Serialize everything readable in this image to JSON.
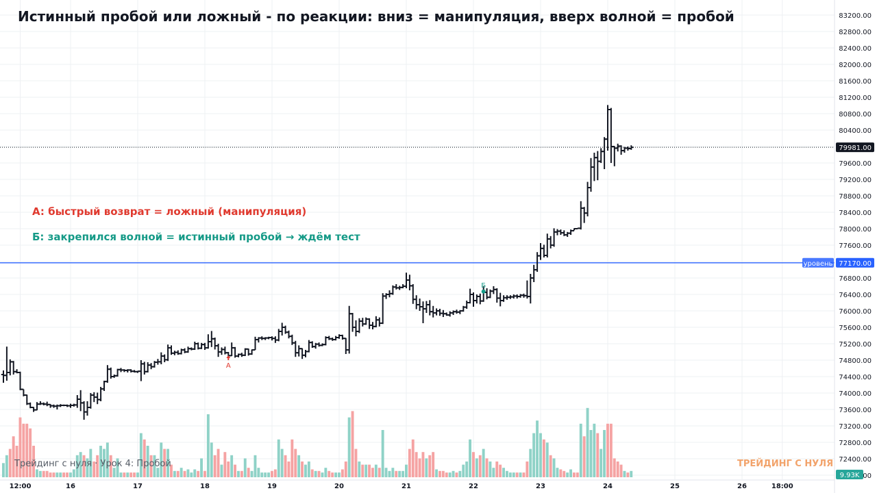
{
  "title": "Истинный пробой или ложный - по реакции: вниз = манипуляция, вверх волной = пробой",
  "notes": {
    "a": "A: быстрый возврат = ложный (манипуляция)",
    "b": "Б: закрепился волной = истинный пробой → ждём тест"
  },
  "watermark_left": "Трейдинг с нуля · Урок 4: Пробой",
  "watermark_right": "ТРЕЙДИНГ С НУЛЯ",
  "chart_data": {
    "type": "ohlc",
    "price_ticks": [
      "83200.00",
      "82800.00",
      "82400.00",
      "82000.00",
      "81600.00",
      "81200.00",
      "80800.00",
      "80400.00",
      "80000.00",
      "79600.00",
      "79200.00",
      "78800.00",
      "78400.00",
      "78000.00",
      "77600.00",
      "77200.00",
      "76800.00",
      "76400.00",
      "76000.00",
      "75600.00",
      "75200.00",
      "74800.00",
      "74400.00",
      "74000.00",
      "73600.00",
      "73200.00",
      "72800.00",
      "72400.00",
      "72000.00"
    ],
    "time_ticks": [
      {
        "label": "12:00",
        "bar": 5
      },
      {
        "label": "16",
        "bar": 20
      },
      {
        "label": "17",
        "bar": 40
      },
      {
        "label": "18",
        "bar": 60
      },
      {
        "label": "19",
        "bar": 80
      },
      {
        "label": "20",
        "bar": 100
      },
      {
        "label": "21",
        "bar": 120
      },
      {
        "label": "22",
        "bar": 140
      },
      {
        "label": "23",
        "bar": 160
      },
      {
        "label": "24",
        "bar": 180
      },
      {
        "label": "25",
        "bar": 200
      },
      {
        "label": "26",
        "bar": 220
      },
      {
        "label": "18:00",
        "bar": 232
      }
    ],
    "ylim": [
      72000,
      83400
    ],
    "last_price": 79981,
    "last_price_label": "79981.00",
    "level": {
      "name": "уровень",
      "value": 77170,
      "label": "77170.00",
      "color": "#2962ff"
    },
    "volume_label": "9.93K",
    "markers": [
      {
        "label": "A",
        "bar": 67,
        "price": 74850,
        "color": "#e03a2f"
      },
      {
        "label": "Б",
        "bar": 143,
        "price": 76470,
        "color": "#159a87"
      }
    ],
    "colors": {
      "bar": "#131722",
      "vol_up": "#8fd2c7",
      "vol_down": "#f5a3a3",
      "grid": "#eef0f3",
      "last_price_bg": "#131722",
      "vol_label_bg": "#26a69a"
    },
    "bars": [
      [
        74450,
        74550,
        74250,
        74430,
        9
      ],
      [
        74430,
        75130,
        74300,
        74500,
        14
      ],
      [
        74500,
        74820,
        74430,
        74760,
        -18
      ],
      [
        74760,
        74780,
        74450,
        74520,
        -26
      ],
      [
        74520,
        74580,
        74480,
        74500,
        -20
      ],
      [
        74500,
        74520,
        74070,
        74090,
        -38
      ],
      [
        74090,
        74090,
        73920,
        73950,
        -34
      ],
      [
        73950,
        73960,
        73710,
        73740,
        -34
      ],
      [
        73740,
        73770,
        73630,
        73650,
        -31
      ],
      [
        73650,
        73660,
        73540,
        73590,
        -20
      ],
      [
        73590,
        73780,
        73580,
        73730,
        5
      ],
      [
        73730,
        73800,
        73710,
        73740,
        4
      ],
      [
        73740,
        73770,
        73700,
        73730,
        -4
      ],
      [
        73730,
        73790,
        73680,
        73720,
        -4
      ],
      [
        73720,
        73730,
        73640,
        73690,
        -3
      ],
      [
        73690,
        73720,
        73640,
        73680,
        -3
      ],
      [
        73680,
        73720,
        73600,
        73690,
        3
      ],
      [
        73690,
        73730,
        73660,
        73700,
        3
      ],
      [
        73700,
        73720,
        73680,
        73700,
        -3
      ],
      [
        73700,
        73720,
        73660,
        73690,
        -3
      ],
      [
        73690,
        73740,
        73640,
        73700,
        3
      ],
      [
        73700,
        73740,
        73670,
        73710,
        5
      ],
      [
        73710,
        73950,
        73640,
        73850,
        14
      ],
      [
        73850,
        74070,
        73560,
        73760,
        16
      ],
      [
        73760,
        73800,
        73350,
        73540,
        -14
      ],
      [
        73540,
        73800,
        73450,
        73650,
        12
      ],
      [
        73650,
        74000,
        73620,
        73950,
        18
      ],
      [
        73950,
        74020,
        73780,
        73900,
        -10
      ],
      [
        73900,
        74010,
        73730,
        73840,
        -14
      ],
      [
        73840,
        74150,
        73800,
        74100,
        20
      ],
      [
        74100,
        74300,
        74050,
        74280,
        18
      ],
      [
        74280,
        74680,
        74250,
        74580,
        22
      ],
      [
        74580,
        74620,
        74350,
        74400,
        -14
      ],
      [
        74400,
        74450,
        74370,
        74420,
        6
      ],
      [
        74420,
        74590,
        74400,
        74570,
        12
      ],
      [
        74570,
        74610,
        74510,
        74560,
        3
      ],
      [
        74560,
        74580,
        74510,
        74550,
        -3
      ],
      [
        74550,
        74580,
        74500,
        74560,
        3
      ],
      [
        74560,
        74580,
        74500,
        74530,
        -3
      ],
      [
        74530,
        74560,
        74500,
        74520,
        -3
      ],
      [
        74520,
        74540,
        74490,
        74530,
        3
      ],
      [
        74530,
        74800,
        74290,
        74710,
        28
      ],
      [
        74710,
        74760,
        74450,
        74520,
        -24
      ],
      [
        74520,
        74750,
        74500,
        74680,
        20
      ],
      [
        74680,
        74730,
        74580,
        74640,
        -14
      ],
      [
        74640,
        74780,
        74620,
        74750,
        14
      ],
      [
        74750,
        74830,
        74690,
        74760,
        6
      ],
      [
        74760,
        74990,
        74700,
        74900,
        22
      ],
      [
        74900,
        74940,
        74750,
        74810,
        -18
      ],
      [
        74810,
        75180,
        74780,
        75100,
        18
      ],
      [
        75100,
        75160,
        74930,
        74970,
        -8
      ],
      [
        74970,
        75030,
        74920,
        74990,
        4
      ],
      [
        74990,
        75040,
        74930,
        74960,
        -4
      ],
      [
        74960,
        75080,
        74940,
        75050,
        6
      ],
      [
        75050,
        75090,
        74970,
        75000,
        -4
      ],
      [
        75000,
        75130,
        74980,
        75080,
        5
      ],
      [
        75080,
        75110,
        75040,
        75070,
        3
      ],
      [
        75070,
        75250,
        75050,
        75200,
        5
      ],
      [
        75200,
        75230,
        75060,
        75090,
        -4
      ],
      [
        75090,
        75220,
        75070,
        75180,
        12
      ],
      [
        75180,
        75220,
        75050,
        75100,
        -4
      ],
      [
        75100,
        75430,
        75080,
        75250,
        40
      ],
      [
        75250,
        75510,
        75120,
        75320,
        22
      ],
      [
        75320,
        75350,
        75060,
        75150,
        -14
      ],
      [
        75150,
        75200,
        74880,
        75000,
        -18
      ],
      [
        75000,
        75110,
        74930,
        75060,
        8
      ],
      [
        75060,
        75130,
        74940,
        74980,
        -16
      ],
      [
        74980,
        75000,
        74850,
        74910,
        -10
      ],
      [
        74910,
        75230,
        74900,
        75100,
        14
      ],
      [
        75100,
        75120,
        74860,
        74900,
        -8
      ],
      [
        74900,
        74960,
        74870,
        74940,
        4
      ],
      [
        74940,
        74980,
        74880,
        74920,
        -4
      ],
      [
        74920,
        75090,
        74900,
        75070,
        12
      ],
      [
        75070,
        75080,
        74910,
        74950,
        -6
      ],
      [
        74950,
        75060,
        74930,
        75050,
        4
      ],
      [
        75050,
        75370,
        75050,
        75300,
        14
      ],
      [
        75300,
        75360,
        75230,
        75340,
        6
      ],
      [
        75340,
        75380,
        75290,
        75330,
        3
      ],
      [
        75330,
        75360,
        75290,
        75340,
        3
      ],
      [
        75340,
        75370,
        75310,
        75350,
        3
      ],
      [
        75350,
        75380,
        75280,
        75330,
        -4
      ],
      [
        75330,
        75380,
        75220,
        75290,
        -5
      ],
      [
        75290,
        75560,
        75260,
        75500,
        24
      ],
      [
        75500,
        75710,
        75400,
        75600,
        18
      ],
      [
        75600,
        75640,
        75440,
        75480,
        -14
      ],
      [
        75480,
        75520,
        75330,
        75380,
        -10
      ],
      [
        75380,
        75420,
        75170,
        75220,
        -24
      ],
      [
        75220,
        75270,
        74880,
        74980,
        -18
      ],
      [
        74980,
        75160,
        74890,
        75080,
        14
      ],
      [
        75080,
        75090,
        74830,
        74920,
        -10
      ],
      [
        74920,
        75050,
        74870,
        75010,
        8
      ],
      [
        75010,
        75290,
        74990,
        75230,
        10
      ],
      [
        75230,
        75260,
        75100,
        75130,
        -5
      ],
      [
        75130,
        75220,
        75080,
        75190,
        4
      ],
      [
        75190,
        75230,
        75130,
        75160,
        -4
      ],
      [
        75160,
        75210,
        75140,
        75180,
        3
      ],
      [
        75180,
        75380,
        75160,
        75350,
        6
      ],
      [
        75350,
        75390,
        75290,
        75320,
        -4
      ],
      [
        75320,
        75350,
        75270,
        75300,
        -3
      ],
      [
        75300,
        75390,
        75280,
        75350,
        3
      ],
      [
        75350,
        75430,
        75320,
        75400,
        3
      ],
      [
        75400,
        75420,
        75300,
        75330,
        -5
      ],
      [
        75330,
        75340,
        74950,
        75050,
        -10
      ],
      [
        75050,
        76120,
        74960,
        75930,
        38
      ],
      [
        75930,
        75950,
        75490,
        75600,
        -42
      ],
      [
        75600,
        75770,
        75380,
        75500,
        -18
      ],
      [
        75500,
        75820,
        75460,
        75750,
        10
      ],
      [
        75750,
        75830,
        75620,
        75680,
        -8
      ],
      [
        75680,
        75840,
        75660,
        75800,
        8
      ],
      [
        75800,
        75820,
        75560,
        75650,
        -8
      ],
      [
        75650,
        75730,
        75550,
        75620,
        -6
      ],
      [
        75620,
        75870,
        75600,
        75780,
        8
      ],
      [
        75780,
        75840,
        75620,
        75700,
        -6
      ],
      [
        75700,
        76430,
        75680,
        76360,
        30
      ],
      [
        76360,
        76430,
        76290,
        76400,
        6
      ],
      [
        76400,
        76500,
        76330,
        76420,
        4
      ],
      [
        76420,
        76620,
        76390,
        76580,
        6
      ],
      [
        76580,
        76650,
        76520,
        76560,
        -4
      ],
      [
        76560,
        76610,
        76510,
        76570,
        4
      ],
      [
        76570,
        76650,
        76550,
        76600,
        4
      ],
      [
        76600,
        76930,
        76550,
        76750,
        8
      ],
      [
        76750,
        76880,
        76500,
        76610,
        -18
      ],
      [
        76610,
        76650,
        76170,
        76280,
        -24
      ],
      [
        76280,
        76380,
        76040,
        76150,
        -16
      ],
      [
        76150,
        76300,
        76000,
        76100,
        -12
      ],
      [
        76100,
        76230,
        75700,
        76050,
        -16
      ],
      [
        76050,
        76240,
        75950,
        76150,
        12
      ],
      [
        76150,
        76260,
        75890,
        75980,
        -14
      ],
      [
        75980,
        76120,
        75840,
        75950,
        -16
      ],
      [
        75950,
        76060,
        75890,
        76000,
        5
      ],
      [
        76000,
        76050,
        75880,
        75940,
        -4
      ],
      [
        75940,
        76020,
        75850,
        75930,
        -4
      ],
      [
        75930,
        75960,
        75880,
        75900,
        -3
      ],
      [
        75900,
        75990,
        75860,
        75950,
        3
      ],
      [
        75950,
        76010,
        75900,
        75980,
        4
      ],
      [
        75980,
        76030,
        75930,
        75970,
        -3
      ],
      [
        75970,
        76020,
        75920,
        76000,
        4
      ],
      [
        76000,
        76120,
        75980,
        76090,
        8
      ],
      [
        76090,
        76250,
        76050,
        76200,
        10
      ],
      [
        76200,
        76540,
        76180,
        76400,
        24
      ],
      [
        76400,
        76450,
        76100,
        76250,
        -16
      ],
      [
        76250,
        76400,
        76180,
        76350,
        12
      ],
      [
        76350,
        76420,
        76160,
        76240,
        -14
      ],
      [
        76240,
        76600,
        76220,
        76450,
        18
      ],
      [
        76450,
        76550,
        76280,
        76330,
        -12
      ],
      [
        76330,
        76520,
        76310,
        76480,
        10
      ],
      [
        76480,
        76600,
        76410,
        76520,
        6
      ],
      [
        76520,
        76550,
        76200,
        76310,
        -10
      ],
      [
        76310,
        76440,
        76110,
        76250,
        -8
      ],
      [
        76250,
        76380,
        76220,
        76320,
        6
      ],
      [
        76320,
        76380,
        76270,
        76330,
        4
      ],
      [
        76330,
        76380,
        76290,
        76340,
        3
      ],
      [
        76340,
        76400,
        76300,
        76360,
        3
      ],
      [
        76360,
        76400,
        76300,
        76350,
        -3
      ],
      [
        76350,
        76410,
        76320,
        76380,
        3
      ],
      [
        76380,
        76420,
        76320,
        76370,
        -3
      ],
      [
        76370,
        76740,
        76300,
        76350,
        -10
      ],
      [
        76350,
        76900,
        76180,
        76800,
        18
      ],
      [
        76800,
        77120,
        76700,
        77000,
        28
      ],
      [
        77000,
        77430,
        76950,
        77340,
        36
      ],
      [
        77340,
        77650,
        77240,
        77520,
        28
      ],
      [
        77520,
        77610,
        77300,
        77350,
        -24
      ],
      [
        77350,
        77880,
        77300,
        77750,
        22
      ],
      [
        77750,
        77820,
        77520,
        77600,
        -14
      ],
      [
        77600,
        78010,
        77560,
        77920,
        12
      ],
      [
        77920,
        77990,
        77840,
        77940,
        6
      ],
      [
        77940,
        77980,
        77850,
        77900,
        -5
      ],
      [
        77900,
        77960,
        77820,
        77850,
        -4
      ],
      [
        77850,
        77920,
        77800,
        77890,
        3
      ],
      [
        77890,
        77980,
        77850,
        77950,
        5
      ],
      [
        77950,
        78010,
        77960,
        78000,
        -3
      ],
      [
        78000,
        78010,
        77990,
        78010,
        -3
      ],
      [
        78010,
        78670,
        77980,
        78500,
        34
      ],
      [
        78500,
        78530,
        78140,
        78380,
        -26
      ],
      [
        78380,
        79140,
        78300,
        79000,
        44
      ],
      [
        79000,
        79720,
        78900,
        79500,
        30
      ],
      [
        79500,
        79850,
        79160,
        79730,
        34
      ],
      [
        79730,
        79890,
        79180,
        79640,
        -28
      ],
      [
        79640,
        79960,
        79600,
        79880,
        18
      ],
      [
        79880,
        80230,
        79450,
        80180,
        30
      ],
      [
        80180,
        81010,
        79900,
        80900,
        -34
      ],
      [
        80900,
        80940,
        79600,
        80000,
        -34
      ],
      [
        80000,
        80010,
        79520,
        79960,
        -12
      ],
      [
        79960,
        80070,
        79880,
        80010,
        -10
      ],
      [
        80010,
        80030,
        79800,
        79900,
        -8
      ],
      [
        79900,
        79990,
        79850,
        79960,
        4
      ],
      [
        79960,
        80000,
        79900,
        79950,
        -3
      ],
      [
        79950,
        80030,
        79920,
        79981,
        4
      ]
    ]
  }
}
